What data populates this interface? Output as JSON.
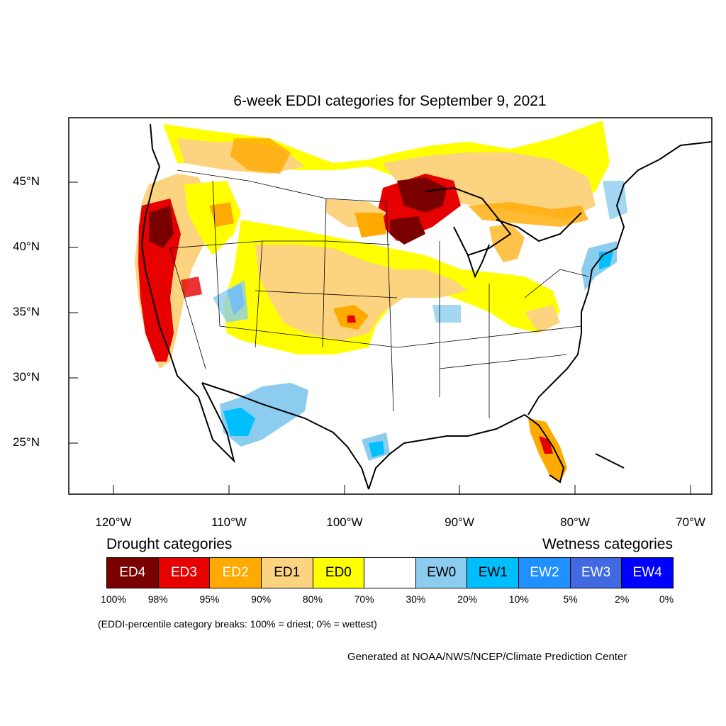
{
  "title": "6-week EDDI categories for September 9, 2021",
  "lat_labels": [
    "45°N",
    "40°N",
    "35°N",
    "30°N",
    "25°N"
  ],
  "lon_labels": [
    "120°W",
    "110°W",
    "100°W",
    "90°W",
    "80°W",
    "70°W"
  ],
  "legend": {
    "drought_heading": "Drought categories",
    "wetness_heading": "Wetness categories",
    "categories": [
      {
        "label": "ED4",
        "color": "#7a0000",
        "text_color": "#ffffff"
      },
      {
        "label": "ED3",
        "color": "#e60000",
        "text_color": "#ffffff"
      },
      {
        "label": "ED2",
        "color": "#ffaa00",
        "text_color": "#ffffff"
      },
      {
        "label": "ED1",
        "color": "#fcd37f",
        "text_color": "#000000"
      },
      {
        "label": "ED0",
        "color": "#ffff00",
        "text_color": "#000000"
      },
      {
        "label": "",
        "color": "#ffffff",
        "text_color": "#000000"
      },
      {
        "label": "EW0",
        "color": "#8ccdef",
        "text_color": "#000000"
      },
      {
        "label": "EW1",
        "color": "#00bfff",
        "text_color": "#000000"
      },
      {
        "label": "EW2",
        "color": "#1e90ff",
        "text_color": "#ffffff"
      },
      {
        "label": "EW3",
        "color": "#4169e1",
        "text_color": "#ffffff"
      },
      {
        "label": "EW4",
        "color": "#0000ff",
        "text_color": "#ffffff"
      }
    ],
    "breaks": [
      "100%",
      "98%",
      "95%",
      "90%",
      "80%",
      "70%",
      "30%",
      "20%",
      "10%",
      "5%",
      "2%",
      "0%"
    ]
  },
  "note": "(EDDI-percentile category breaks: 100% = driest; 0% = wettest)",
  "credit": "Generated at NOAA/NWS/NCEP/Climate Prediction Center"
}
